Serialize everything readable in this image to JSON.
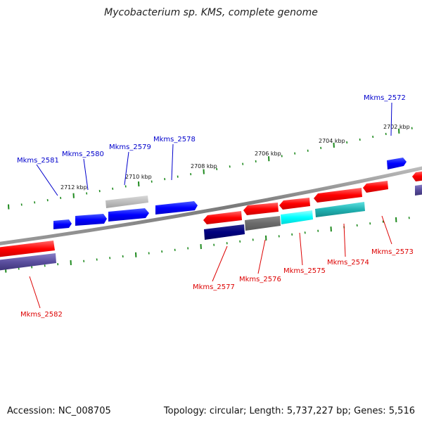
{
  "title": "Mycobacterium sp. KMS, complete genome",
  "accession_label": "Accession: NC_008705",
  "stats_label": "Topology: circular; Length: 5,737,227 bp; Genes: 5,516",
  "ruler_labels": [
    "2702 kbp",
    "2704 kbp",
    "2706 kbp",
    "2708 kbp",
    "2710 kbp",
    "2712 kbp"
  ],
  "forward_genes": [
    "Mkms_2572",
    "Mkms_2578",
    "Mkms_2579",
    "Mkms_2580",
    "Mkms_2581"
  ],
  "reverse_genes": [
    "Mkms_2573",
    "Mkms_2574",
    "Mkms_2575",
    "Mkms_2576",
    "Mkms_2577",
    "Mkms_2582"
  ],
  "colors": {
    "forward_label": "#0000cc",
    "reverse_label": "#dd0000",
    "backbone": "#808080",
    "tick": "#1e8a1e"
  }
}
